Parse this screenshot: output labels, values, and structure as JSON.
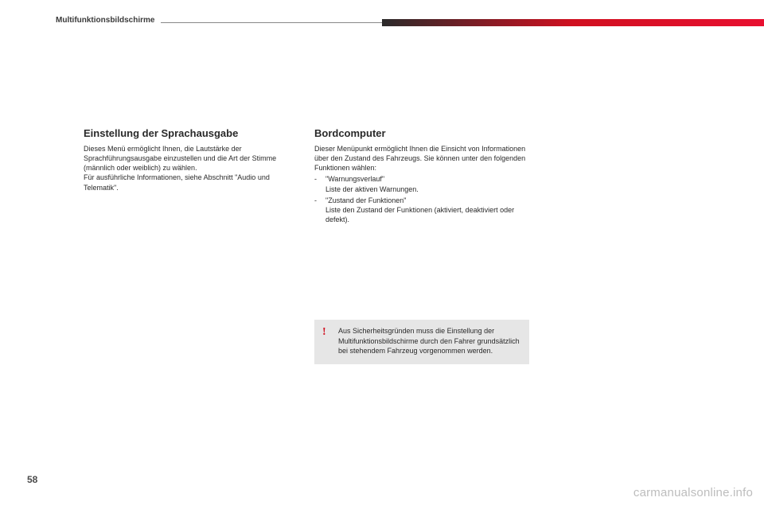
{
  "header": {
    "section_title": "Multifunktionsbildschirme"
  },
  "left": {
    "title": "Einstellung der Sprachausgabe",
    "para": "Dieses Menü ermöglicht Ihnen, die Lautstärke der Sprachführungsausgabe einzustellen und die Art der Stimme (männlich oder weiblich) zu wählen.",
    "para2": "Für ausführliche Informationen, siehe Abschnitt \"Audio und Telematik\"."
  },
  "right": {
    "title": "Bordcomputer",
    "intro": "Dieser Menüpunkt ermöglicht Ihnen die Einsicht von Informationen über den Zustand des Fahrzeugs. Sie können unter den folgenden Funktionen wählen:",
    "items": [
      {
        "label": "\"Warnungsverlauf\"",
        "desc": "Liste der aktiven Warnungen."
      },
      {
        "label": "\"Zustand der Funktionen\"",
        "desc": "Liste den Zustand der Funktionen (aktiviert, deaktiviert oder defekt)."
      }
    ]
  },
  "warning": {
    "icon": "!",
    "text": "Aus Sicherheitsgründen muss die Einstellung der Multifunktionsbildschirme durch den Fahrer grundsätzlich bei stehendem Fahrzeug vorgenommen werden."
  },
  "footer": {
    "page": "58",
    "watermark": "carmanualsonline.info"
  }
}
